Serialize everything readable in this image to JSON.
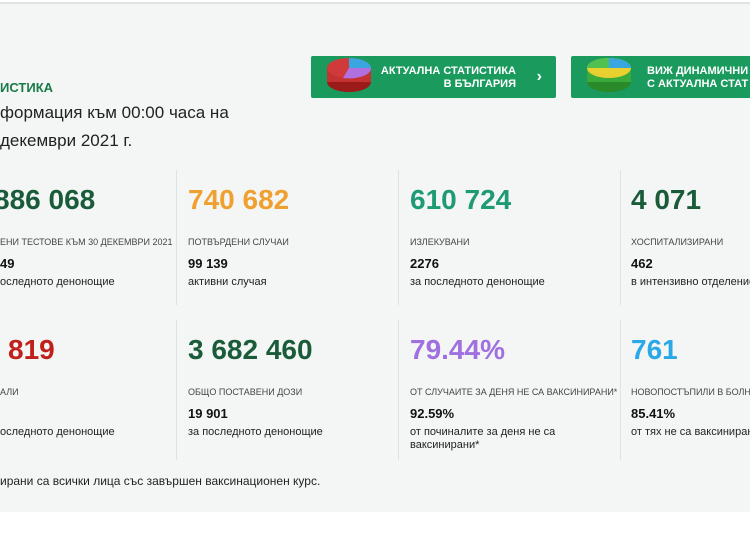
{
  "header": {
    "title": "ИСТИКА",
    "subtitle_lines": [
      "формация към 00:00 часа на",
      "декември 2021 г."
    ]
  },
  "buttons": [
    {
      "lines": [
        "АКТУАЛНА СТАТИСТИКА",
        "В БЪЛГАРИЯ"
      ]
    },
    {
      "lines": [
        "ВИЖ ДИНАМИЧНИ",
        "С АКТУАЛНА СТАТ"
      ]
    }
  ],
  "cards": [
    {
      "value": "886 068",
      "label": "ЕНИ ТЕСТОВЕ КЪМ 30 ДЕКЕМВРИ 2021",
      "sub_value": "49",
      "sub_label": "оследното денонощие"
    },
    {
      "value": "740 682",
      "label": "ПОТВЪРДЕНИ СЛУЧАИ",
      "sub_value": "99 139",
      "sub_label": "активни случая"
    },
    {
      "value": "610 724",
      "label": "ИЗЛЕКУВАНИ",
      "sub_value": "2276",
      "sub_label": "за последното денонощие"
    },
    {
      "value": "4 071",
      "label": "ХОСПИТАЛИЗИРАНИ",
      "sub_value": "462",
      "sub_label": "в интензивно отделение"
    },
    {
      "value": "819",
      "label": "АЛИ",
      "sub_label": "оследното денонощие"
    },
    {
      "value": "3 682 460",
      "label": "ОБЩО ПОСТАВЕНИ ДОЗИ",
      "sub_value": "19 901",
      "sub_label": "за последното денонощие"
    },
    {
      "value": "79.44%",
      "label": "ОТ СЛУЧАИТЕ ЗА ДЕНЯ НЕ СА ВАКСИНИРАНИ*",
      "sub_value": "92.59%",
      "sub_label": "от починалите за деня не са ваксинирани*"
    },
    {
      "value": "761",
      "label": "НОВОПОСТЪПИЛИ В БОЛНИ",
      "sub_value": "85.41%",
      "sub_label": "от тях не са ваксинирани"
    }
  ],
  "footnote": "ирани са всички лица със завършен ваксинационен курс."
}
